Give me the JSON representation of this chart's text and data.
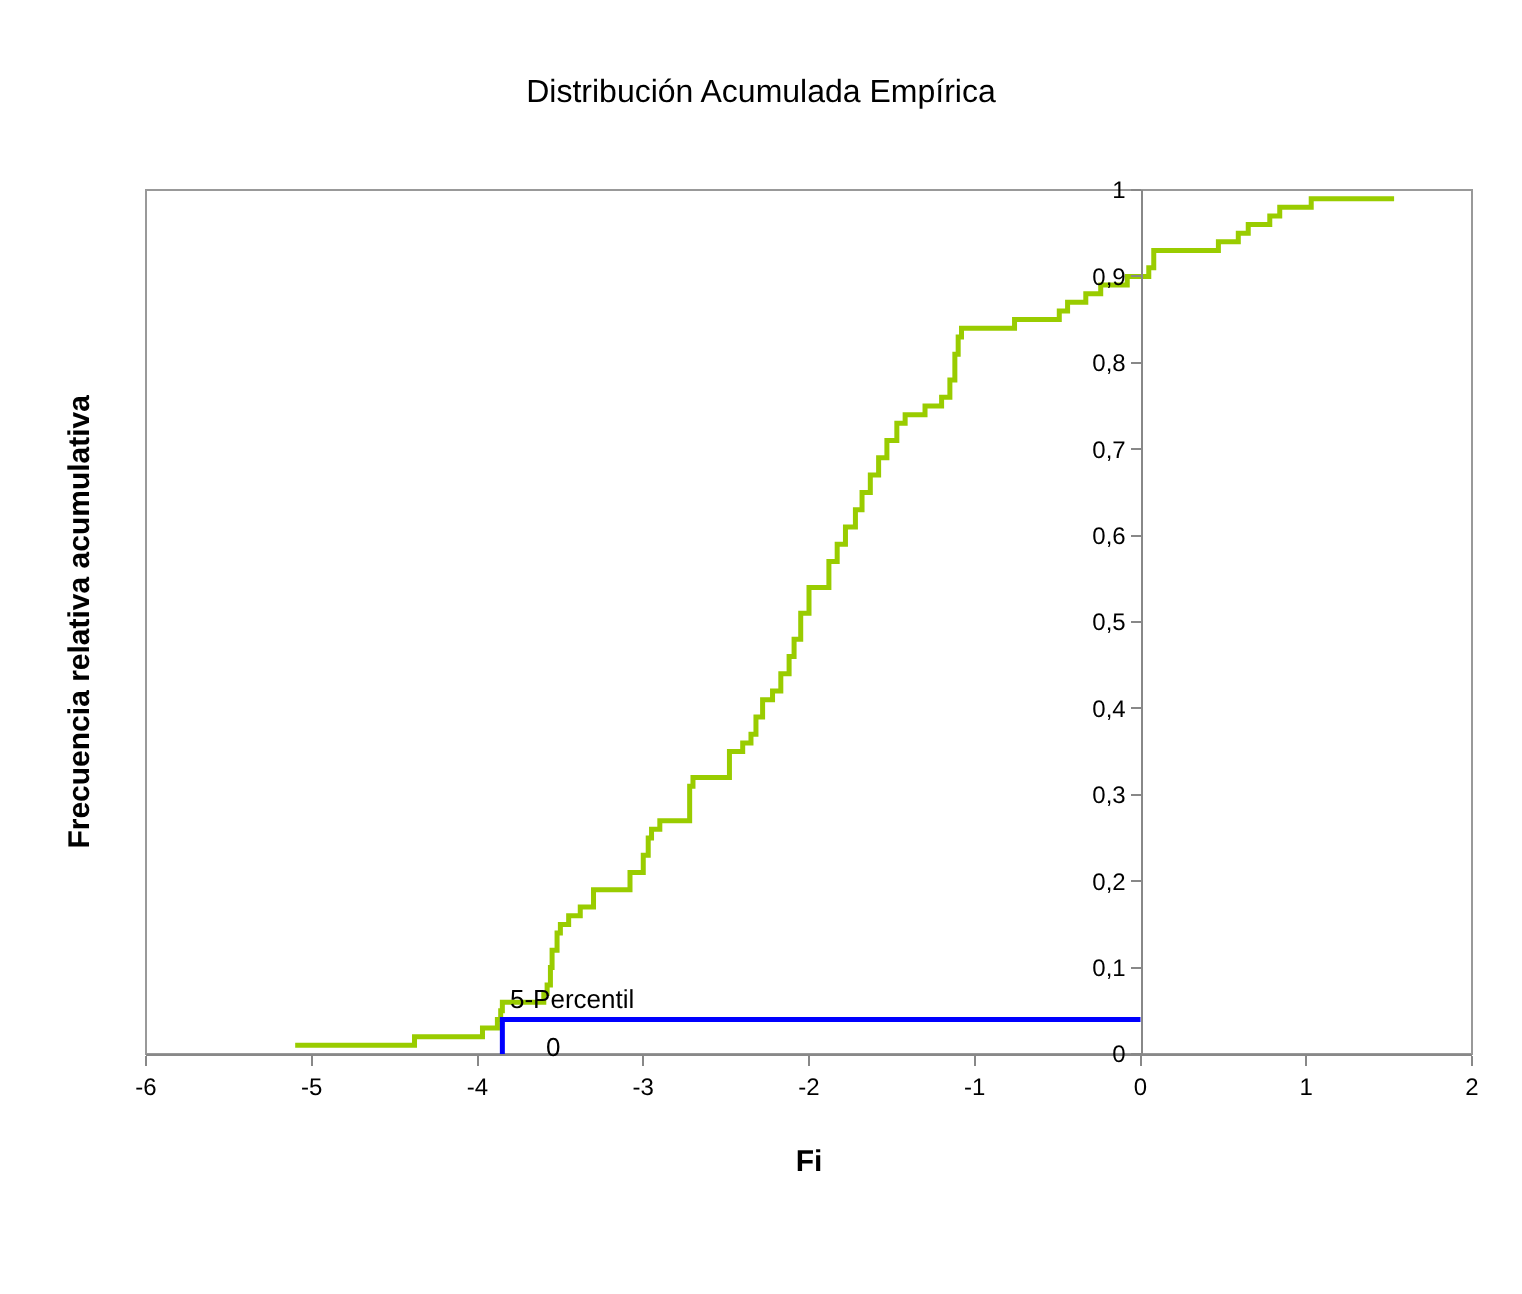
{
  "chart_data": {
    "type": "step",
    "title": "Distribución Acumulada Empírica",
    "xlabel": "Fi",
    "ylabel": "Frecuencia relativa acumulativa",
    "series": [
      {
        "color": "#99cc00",
        "x": [
          -5.1,
          -4.38,
          -3.97,
          -3.88,
          -3.86,
          -3.85,
          -3.6,
          -3.58,
          -3.56,
          -3.55,
          -3.52,
          -3.5,
          -3.45,
          -3.38,
          -3.3,
          -3.08,
          -3.0,
          -2.97,
          -2.95,
          -2.9,
          -2.72,
          -2.7,
          -2.48,
          -2.4,
          -2.35,
          -2.32,
          -2.28,
          -2.22,
          -2.17,
          -2.12,
          -2.09,
          -2.05,
          -2.0,
          -1.88,
          -1.83,
          -1.78,
          -1.72,
          -1.68,
          -1.63,
          -1.58,
          -1.53,
          -1.47,
          -1.42,
          -1.3,
          -1.2,
          -1.15,
          -1.12,
          -1.1,
          -1.08,
          -0.76,
          -0.49,
          -0.44,
          -0.33,
          -0.24,
          -0.08,
          0.05,
          0.08,
          0.47,
          0.59,
          0.65,
          0.78,
          0.84,
          1.03,
          1.53
        ],
        "values": [
          0.01,
          0.02,
          0.03,
          0.04,
          0.05,
          0.06,
          0.07,
          0.08,
          0.1,
          0.12,
          0.14,
          0.15,
          0.16,
          0.17,
          0.19,
          0.21,
          0.23,
          0.25,
          0.26,
          0.27,
          0.31,
          0.32,
          0.35,
          0.36,
          0.37,
          0.39,
          0.41,
          0.42,
          0.44,
          0.46,
          0.48,
          0.51,
          0.54,
          0.57,
          0.59,
          0.61,
          0.63,
          0.65,
          0.67,
          0.69,
          0.71,
          0.73,
          0.74,
          0.75,
          0.76,
          0.78,
          0.81,
          0.83,
          0.84,
          0.85,
          0.86,
          0.87,
          0.88,
          0.89,
          0.9,
          0.91,
          0.93,
          0.94,
          0.95,
          0.96,
          0.97,
          0.98,
          0.99,
          0.99
        ]
      },
      {
        "type": "line",
        "color": "#0000ff",
        "x": [
          -3.85,
          -3.85,
          0
        ],
        "values": [
          0,
          0.04,
          0.04
        ]
      }
    ],
    "annotations": [
      {
        "text": "5-Percentil",
        "x": -3.85,
        "y": 0.04
      },
      "0"
    ],
    "xlim": [
      -6,
      2
    ],
    "xticks": [
      -6,
      -5,
      -4,
      -3,
      -2,
      -1,
      0,
      1,
      2
    ],
    "ylim": [
      0,
      1
    ],
    "yticks": [
      0,
      {
        "value": 0.1,
        "label": "0,1"
      },
      {
        "value": 0.2,
        "label": "0,2"
      },
      {
        "value": 0.3,
        "label": "0,3"
      },
      {
        "value": 0.4,
        "label": "0,4"
      },
      {
        "value": 0.5,
        "label": "0,5"
      },
      {
        "value": 0.6,
        "label": "0,6"
      },
      {
        "value": 0.7,
        "label": "0,7"
      },
      {
        "value": 0.8,
        "label": "0,8"
      },
      {
        "value": 0.9,
        "label": "0,9"
      },
      1
    ],
    "grid": false
  }
}
